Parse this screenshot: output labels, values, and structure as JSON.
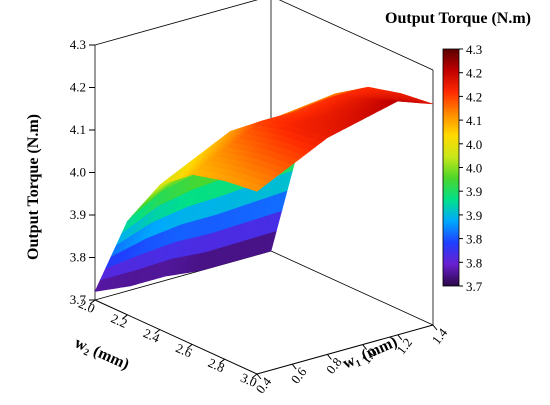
{
  "chart_data": {
    "type": "surface3d",
    "title": "Output Torque (N.m)",
    "zlabel": "Output Torque (N.m)",
    "xlabel": "w₂ (mm)",
    "ylabel": "w₁ (mm)",
    "x_axis": {
      "ticks": [
        2.0,
        2.2,
        2.4,
        2.6,
        2.8,
        3.0
      ],
      "tick_labels": [
        "2.0",
        "2.2",
        "2.4",
        "2.6",
        "2.8",
        "3.0"
      ],
      "range": [
        2.0,
        3.0
      ]
    },
    "y_axis": {
      "ticks": [
        0.4,
        0.6,
        0.8,
        1.0,
        1.2,
        1.4
      ],
      "tick_labels": [
        "0.4",
        "0.6",
        "0.8",
        "1.0",
        "1.2",
        "1.4"
      ],
      "range": [
        0.4,
        1.4
      ]
    },
    "z_axis": {
      "ticks": [
        3.7,
        3.8,
        3.9,
        4.0,
        4.1,
        4.2,
        4.3
      ],
      "tick_labels": [
        "3.7",
        "3.8",
        "3.9",
        "4.0",
        "4.1",
        "4.2",
        "4.3"
      ],
      "range": [
        3.7,
        4.3
      ]
    },
    "colorbar": {
      "min": 3.7,
      "max": 4.3,
      "tick_labels": [
        "4.3",
        "4.2",
        "4.2",
        "4.1",
        "4.0",
        "4.0",
        "3.9",
        "3.9",
        "3.8",
        "3.8",
        "3.7"
      ],
      "colormap": [
        "#2a0845",
        "#6a1fd0",
        "#1f3fff",
        "#00a8ff",
        "#00e08a",
        "#4cd62a",
        "#c8e81a",
        "#ffd900",
        "#ff8a00",
        "#ff2a00",
        "#c00000",
        "#5a0000"
      ]
    },
    "surface": {
      "w2_values": [
        2.0,
        2.2,
        2.4,
        2.6,
        2.8,
        3.0
      ],
      "w1_values": [
        0.4,
        0.6,
        0.8,
        1.0,
        1.2,
        1.4
      ],
      "torque": [
        [
          3.72,
          3.71,
          3.71,
          3.7,
          3.7,
          3.7
        ],
        [
          3.92,
          3.97,
          3.99,
          4.0,
          4.01,
          4.02
        ],
        [
          4.04,
          4.08,
          4.12,
          4.12,
          4.13,
          4.14
        ],
        [
          4.1,
          4.14,
          4.18,
          4.18,
          4.19,
          4.19
        ],
        [
          4.12,
          4.16,
          4.2,
          4.21,
          4.22,
          4.21
        ],
        [
          4.13,
          4.17,
          4.21,
          4.23,
          4.25,
          4.22
        ]
      ]
    },
    "grid": false,
    "legend": "right"
  }
}
